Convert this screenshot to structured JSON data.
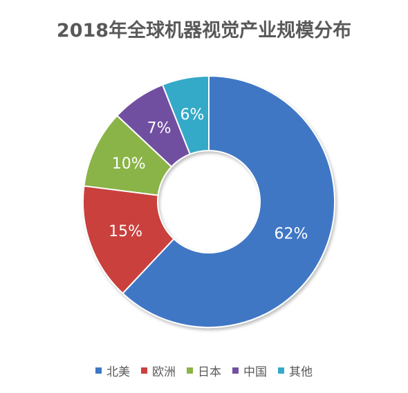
{
  "chart_data": {
    "type": "pie",
    "title": "2018年全球机器视觉产业规模分布",
    "categories": [
      "北美",
      "欧洲",
      "日本",
      "中国",
      "其他"
    ],
    "values": [
      62,
      15,
      10,
      7,
      6
    ],
    "labels": [
      "62%",
      "15%",
      "10%",
      "7%",
      "6%"
    ],
    "colors": [
      "#3f77c5",
      "#c9403c",
      "#8ab446",
      "#7150a0",
      "#35a9c8"
    ],
    "donut": true,
    "legend_position": "bottom"
  }
}
